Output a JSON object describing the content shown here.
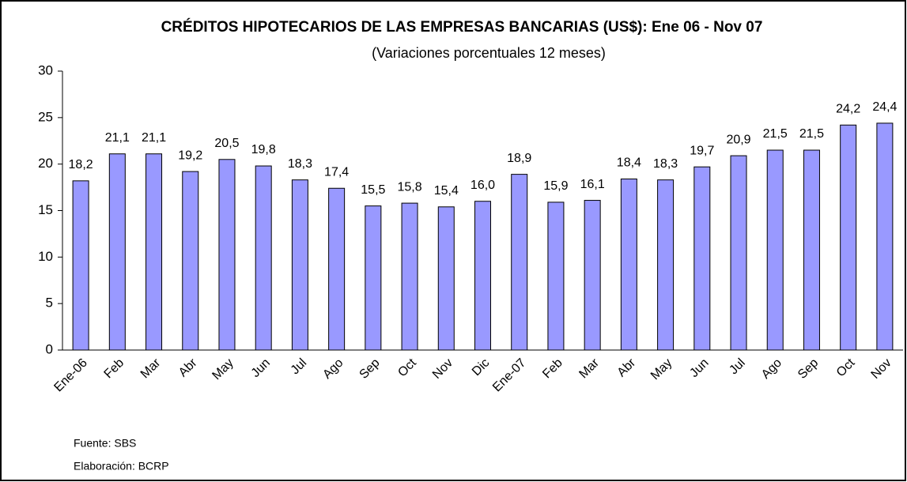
{
  "chart_data": {
    "type": "bar",
    "title": "CRÉDITOS HIPOTECARIOS DE LAS EMPRESAS BANCARIAS (US$): Ene 06 - Nov 07",
    "subtitle": "(Variaciones porcentuales 12 meses)",
    "categories": [
      "Ene-06",
      "Feb",
      "Mar",
      "Abr",
      "May",
      "Jun",
      "Jul",
      "Ago",
      "Sep",
      "Oct",
      "Nov",
      "Dic",
      "Ene-07",
      "Feb",
      "Mar",
      "Abr",
      "May",
      "Jun",
      "Jul",
      "Ago",
      "Sep",
      "Oct",
      "Nov"
    ],
    "values": [
      18.2,
      21.1,
      21.1,
      19.2,
      20.5,
      19.8,
      18.3,
      17.4,
      15.5,
      15.8,
      15.4,
      16.0,
      18.9,
      15.9,
      16.1,
      18.4,
      18.3,
      19.7,
      20.9,
      21.5,
      21.5,
      24.2,
      24.4
    ],
    "value_labels": [
      "18,2",
      "21,1",
      "21,1",
      "19,2",
      "20,5",
      "19,8",
      "18,3",
      "17,4",
      "15,5",
      "15,8",
      "15,4",
      "16,0",
      "18,9",
      "15,9",
      "16,1",
      "18,4",
      "18,3",
      "19,7",
      "20,9",
      "21,5",
      "21,5",
      "24,2",
      "24,4"
    ],
    "color": "#9999ff",
    "ylim": [
      0,
      30
    ],
    "yticks": [
      0,
      5,
      10,
      15,
      20,
      25,
      30
    ],
    "grid": false,
    "source": "Fuente: SBS",
    "credit": "Elaboración: BCRP"
  }
}
